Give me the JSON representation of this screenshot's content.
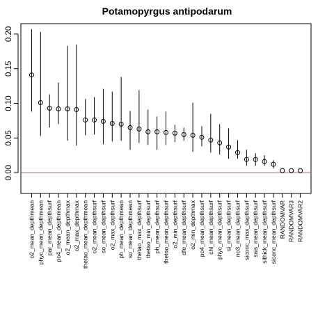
{
  "chart_data": {
    "type": "scatter",
    "title": "Potamopyrgus antipodarum",
    "xlabel": "",
    "ylabel": "",
    "ylim": [
      -0.03,
      0.215
    ],
    "yticks": [
      0.0,
      0.05,
      0.1,
      0.15,
      0.2
    ],
    "ytick_labels": [
      "0.00",
      "0.05",
      "0.10",
      "0.15",
      "0.20"
    ],
    "reference_line": {
      "y": 0.0,
      "color": "#b06060"
    },
    "grid": false,
    "categories": [
      "o2_mean_depthmean",
      "phyc_mean_depthmean",
      "par_mean_depthsurf",
      "po4_mean_depthmean",
      "o2_mean_depthmax",
      "o2_max_depthmax",
      "thetao_mean_depthmean",
      "o2_mean_depthsurf",
      "so_mean_depthsurf",
      "o2_max_depthsurf",
      "ph_mean_depthmean",
      "so_mean_depthmean",
      "thetao_max_depthsurf",
      "thetao_min_depthsurf",
      "ph_mean_depthsurf",
      "thetao_mean_depthsurf",
      "o2_min_depthsurf",
      "dfe_mean_depthsurf",
      "o2_min_depthmax",
      "po4_mean_depthsurf",
      "chl_mean_depthsurf",
      "phyc_mean_depthsurf",
      "si_mean_depthsurf",
      "no3_mean_depthsurf",
      "siconc_max_depthsurf",
      "sws_mean_depthsurf",
      "sithick_mean_depthsurf",
      "siconc_mean_depthsurf",
      "RANDOMVAR",
      "RANDOMVAR3",
      "RANDOMVAR2"
    ],
    "values": [
      0.141,
      0.101,
      0.093,
      0.092,
      0.092,
      0.091,
      0.076,
      0.076,
      0.074,
      0.071,
      0.07,
      0.065,
      0.063,
      0.059,
      0.059,
      0.058,
      0.057,
      0.055,
      0.054,
      0.051,
      0.047,
      0.043,
      0.037,
      0.029,
      0.019,
      0.019,
      0.016,
      0.012,
      0.003,
      0.003,
      0.003
    ],
    "lower": [
      0.088,
      0.053,
      0.065,
      0.07,
      0.046,
      0.039,
      0.054,
      0.055,
      0.041,
      0.045,
      0.046,
      0.033,
      0.043,
      0.04,
      0.033,
      0.04,
      0.044,
      0.046,
      0.03,
      0.038,
      0.029,
      0.026,
      0.02,
      0.02,
      0.01,
      0.01,
      0.01,
      0.006,
      0.003,
      0.003,
      0.003
    ],
    "upper": [
      0.207,
      0.203,
      0.113,
      0.13,
      0.183,
      0.185,
      0.106,
      0.109,
      0.121,
      0.117,
      0.138,
      0.089,
      0.119,
      0.091,
      0.081,
      0.088,
      0.069,
      0.065,
      0.101,
      0.067,
      0.085,
      0.07,
      0.064,
      0.047,
      0.033,
      0.028,
      0.025,
      0.018,
      0.003,
      0.003,
      0.003
    ]
  }
}
